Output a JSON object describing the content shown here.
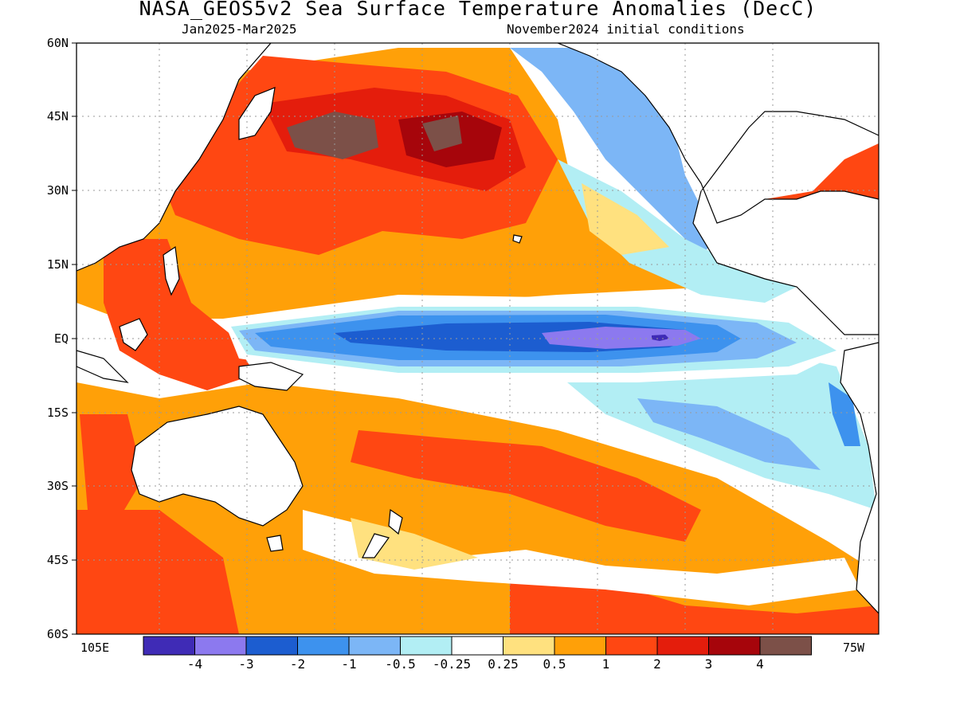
{
  "title": "NASA_GEOS5v2 Sea Surface Temperature Anomalies (DecC)",
  "subtitle_left": "Jan2025-Mar2025",
  "subtitle_right": "November2024 initial conditions",
  "y_labels": [
    "60N",
    "45N",
    "30N",
    "15N",
    "EQ",
    "15S",
    "30S",
    "45S",
    "60S"
  ],
  "x_labels": {
    "left": "105E",
    "right": "75W"
  },
  "colorbar": {
    "colors": [
      "#3f2bb6",
      "#8c79ef",
      "#1c5dd0",
      "#3d92ee",
      "#7cb6f6",
      "#b2eef4",
      "#ffffff",
      "#ffe17f",
      "#ffa008",
      "#ff4712",
      "#e41d0c",
      "#a6050b",
      "#7c5048"
    ],
    "labels": [
      "-4",
      "-3",
      "-2",
      "-1",
      "-0.5",
      "-0.25",
      "0.25",
      "0.5",
      "1",
      "2",
      "3",
      "4"
    ]
  },
  "colors": {
    "land": "#ffffff",
    "coast": "#000000",
    "warm_strong": "#ff4712",
    "warm": "#ffa008",
    "cool": "#3d92ee",
    "cool_strong": "#1c5dd0",
    "extreme_cool": "#8c79ef",
    "extreme_warm": "#7c5048"
  }
}
